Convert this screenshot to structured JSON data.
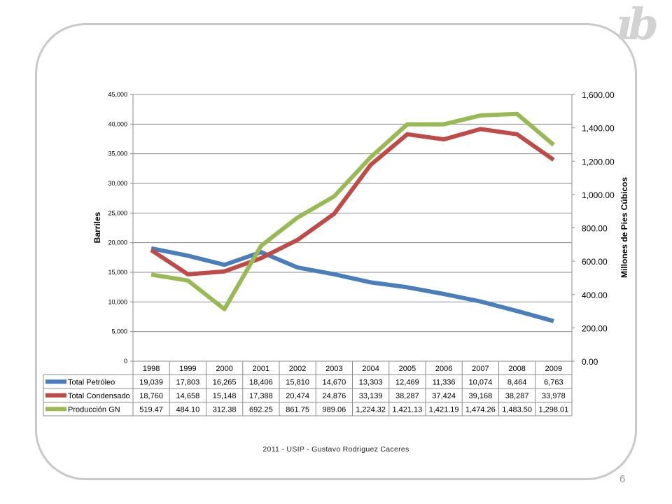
{
  "logo": "ıb",
  "footer": "2011 - USIP - Gustavo Rodriguez Caceres",
  "page_number": "6",
  "colors": {
    "petroleo": "#4a7ebb",
    "condensado": "#be4b48",
    "gn": "#98b954"
  },
  "chart_data": {
    "type": "line",
    "title": "",
    "x": [
      "1998",
      "1999",
      "2000",
      "2001",
      "2002",
      "2003",
      "2004",
      "2005",
      "2006",
      "2007",
      "2008",
      "2009"
    ],
    "ylabel": "Barriles",
    "ylim": [
      0,
      45000
    ],
    "yticks": [
      "0",
      "5,000",
      "10,000",
      "15,000",
      "20,000",
      "25,000",
      "30,000",
      "35,000",
      "40,000",
      "45,000"
    ],
    "y2label": "Millones de Pies Cúbicos",
    "y2lim": [
      0,
      1600
    ],
    "y2ticks": [
      "0.00",
      "200.00",
      "400.00",
      "600.00",
      "800.00",
      "1,000.00",
      "1,200.00",
      "1,400.00",
      "1,600.00"
    ],
    "grid": true,
    "legend": "data-table",
    "series": [
      {
        "name": "Total Petróleo",
        "axis": "left",
        "color": "#4a7ebb",
        "values": [
          19039,
          17803,
          16265,
          18406,
          15810,
          14670,
          13303,
          12469,
          11336,
          10074,
          8464,
          6763
        ],
        "labels": [
          "19,039",
          "17,803",
          "16,265",
          "18,406",
          "15,810",
          "14,670",
          "13,303",
          "12,469",
          "11,336",
          "10,074",
          "8,464",
          "6,763"
        ]
      },
      {
        "name": "Total Condensado",
        "axis": "left",
        "color": "#be4b48",
        "values": [
          18760,
          14658,
          15148,
          17388,
          20474,
          24876,
          33139,
          38287,
          37424,
          39168,
          38287,
          33978
        ],
        "labels": [
          "18,760",
          "14,658",
          "15,148",
          "17,388",
          "20,474",
          "24,876",
          "33,139",
          "38,287",
          "37,424",
          "39,168",
          "38,287",
          "33,978"
        ]
      },
      {
        "name": "Producción GN",
        "axis": "right",
        "color": "#98b954",
        "values": [
          519.47,
          484.1,
          312.38,
          692.25,
          861.75,
          989.06,
          1224.32,
          1421.13,
          1421.19,
          1474.26,
          1483.5,
          1298.01
        ],
        "labels": [
          "519.47",
          "484.10",
          "312.38",
          "692.25",
          "861.75",
          "989.06",
          "1,224.32",
          "1,421.13",
          "1,421.19",
          "1,474.26",
          "1,483.50",
          "1,298.01"
        ]
      }
    ]
  }
}
